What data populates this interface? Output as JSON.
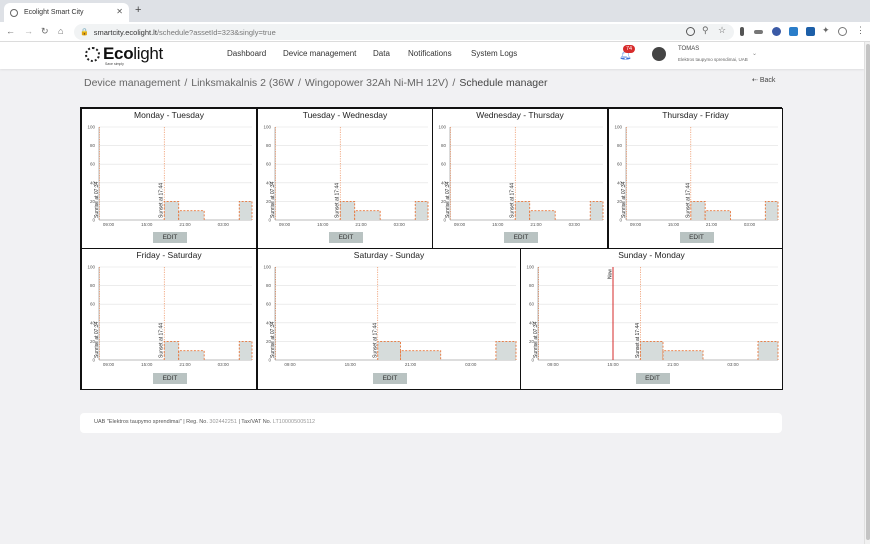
{
  "browser": {
    "tab_title": "Ecolight Smart City",
    "url_host": "smartcity.ecolight.lt",
    "url_path": "/schedule?assetId=323&singly=true"
  },
  "header": {
    "logo_main": "Eco",
    "logo_light": "light",
    "logo_tagline": "Save simply",
    "menu": [
      "Dashboard",
      "Device management",
      "Data",
      "Notifications",
      "System Logs"
    ],
    "notification_count": "74",
    "user_name": "TOMAS",
    "user_company": "Elektros taupymo sprendimai, UAB"
  },
  "breadcrumb": [
    "Device management",
    "Linksmakalnis 2 (36W",
    "Wingopower 32Ah Ni-MH 12V)",
    "Schedule manager"
  ],
  "back_label": "Back",
  "edit_label": "EDIT",
  "panels": [
    {
      "title": "Monday - Tuesday",
      "now": false
    },
    {
      "title": "Tuesday - Wednesday",
      "now": false
    },
    {
      "title": "Wednesday - Thursday",
      "now": false
    },
    {
      "title": "Thursday - Friday",
      "now": false
    },
    {
      "title": "Friday - Saturday",
      "now": false
    },
    {
      "title": "Saturday - Sunday",
      "now": false
    },
    {
      "title": "Sunday - Monday",
      "now": true
    }
  ],
  "chart_common": {
    "y_ticks": [
      "100",
      "80",
      "60",
      "40",
      "20",
      "0"
    ],
    "x_ticks": [
      "09:00",
      "15:00",
      "21:00",
      "03:00"
    ],
    "sunrise_label": "Sunrise at 07:34",
    "sunset_label": "Sunset at 17:44",
    "now_label": "Now"
  },
  "chart_data": {
    "type": "area",
    "ylim": [
      0,
      100
    ],
    "x_start": "07:30",
    "x_end": "07:30 (+1 day)",
    "sunrise": "07:34",
    "sunset": "17:44",
    "now": "15:00",
    "schedule": [
      {
        "from": "17:44",
        "to": "20:00",
        "value": 20
      },
      {
        "from": "20:00",
        "to": "00:00",
        "value": 10
      },
      {
        "from": "00:00",
        "to": "05:30",
        "value": 0
      },
      {
        "from": "05:30",
        "to": "07:30",
        "value": 20
      }
    ]
  },
  "footer": {
    "company": "UAB \"Elektros taupymo sprendimai\" | Reg. No. ",
    "reg_no": "302442251",
    "vat_label": " | Tax/VAT No. ",
    "vat_no": "LT100005005112"
  },
  "colors": {
    "accent": "#e8763a",
    "fill": "#d6dcdb",
    "now_line": "#d42a2a",
    "edit_button": "#b9c3c2"
  }
}
